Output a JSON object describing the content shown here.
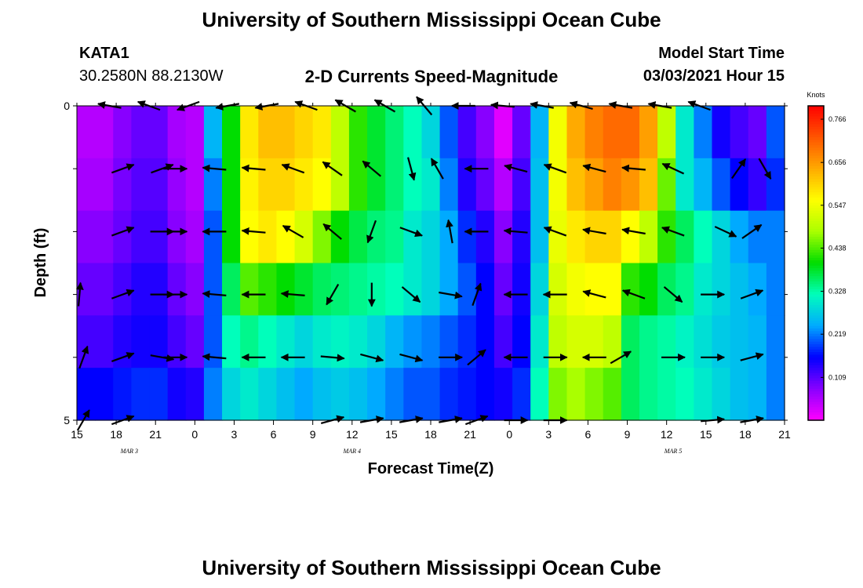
{
  "header": {
    "title": "University of Southern Mississippi Ocean Cube",
    "station": "KATA1",
    "coords": "30.2580N 88.2130W",
    "subtitle": "2-D Currents Speed-Magnitude",
    "model_start_label": "Model Start Time",
    "model_start_value": "03/03/2021 Hour 15"
  },
  "footer": {
    "title": "University of Southern Mississippi Ocean Cube"
  },
  "chart_data": {
    "type": "heatmap",
    "title": "2-D Currents Speed-Magnitude",
    "xlabel": "Forecast Time(Z)",
    "ylabel": "Depth (ft)",
    "x_start_hour": 15,
    "x_end_hour": 69,
    "x_step_hours": 3,
    "x_tick_labels": [
      "15",
      "18",
      "21",
      "0",
      "3",
      "6",
      "9",
      "12",
      "15",
      "18",
      "21",
      "0",
      "3",
      "6",
      "9",
      "12",
      "15",
      "18",
      "21"
    ],
    "day_labels": [
      {
        "text": "MAR 3",
        "hour": 19
      },
      {
        "text": "MAR 4",
        "hour": 36
      },
      {
        "text": "MAR 5",
        "hour": 60.5
      }
    ],
    "y_tick_labels": [
      "0",
      "5"
    ],
    "ylim": [
      0,
      5
    ],
    "depths": [
      0,
      1,
      2,
      3,
      4,
      5
    ],
    "colorbar": {
      "unit": "Knots",
      "ticks": [
        "0.766",
        "0.656",
        "0.547",
        "0.438",
        "0.328",
        "0.219",
        "0.109"
      ],
      "tick_values": [
        0.766,
        0.656,
        0.547,
        0.438,
        0.328,
        0.219,
        0.109
      ],
      "min": 0,
      "max": 0.8,
      "colors": [
        "#ff00ff",
        "#8800ff",
        "#0000ff",
        "#00aaff",
        "#00ffbb",
        "#00dd00",
        "#aaff00",
        "#ffff00",
        "#ffaa00",
        "#ff5500",
        "#ff0000"
      ]
    },
    "speed_rows": [
      [
        0.05,
        0.05,
        0.08,
        0.1,
        0.1,
        0.06,
        0.05,
        0.25,
        0.4,
        0.58,
        0.62,
        0.62,
        0.6,
        0.58,
        0.5,
        0.42,
        0.38,
        0.35,
        0.32,
        0.28,
        0.2,
        0.12,
        0.08,
        0.02,
        0.1,
        0.25,
        0.55,
        0.64,
        0.68,
        0.7,
        0.7,
        0.65,
        0.5,
        0.3,
        0.22,
        0.15,
        0.12,
        0.1,
        0.2
      ],
      [
        0.06,
        0.06,
        0.09,
        0.11,
        0.11,
        0.07,
        0.05,
        0.22,
        0.4,
        0.57,
        0.6,
        0.6,
        0.58,
        0.56,
        0.5,
        0.42,
        0.38,
        0.35,
        0.32,
        0.3,
        0.22,
        0.14,
        0.1,
        0.05,
        0.12,
        0.26,
        0.55,
        0.62,
        0.65,
        0.68,
        0.66,
        0.62,
        0.45,
        0.3,
        0.25,
        0.2,
        0.16,
        0.13,
        0.18
      ],
      [
        0.08,
        0.08,
        0.1,
        0.12,
        0.12,
        0.08,
        0.06,
        0.2,
        0.4,
        0.56,
        0.58,
        0.56,
        0.52,
        0.46,
        0.4,
        0.37,
        0.35,
        0.34,
        0.3,
        0.28,
        0.24,
        0.18,
        0.14,
        0.08,
        0.14,
        0.26,
        0.54,
        0.58,
        0.6,
        0.6,
        0.56,
        0.5,
        0.42,
        0.36,
        0.32,
        0.28,
        0.24,
        0.22,
        0.22
      ],
      [
        0.1,
        0.1,
        0.12,
        0.14,
        0.14,
        0.1,
        0.08,
        0.2,
        0.36,
        0.44,
        0.42,
        0.4,
        0.38,
        0.36,
        0.35,
        0.34,
        0.33,
        0.32,
        0.3,
        0.28,
        0.24,
        0.2,
        0.16,
        0.1,
        0.15,
        0.28,
        0.52,
        0.55,
        0.56,
        0.56,
        0.42,
        0.4,
        0.36,
        0.34,
        0.3,
        0.28,
        0.26,
        0.24,
        0.22
      ],
      [
        0.12,
        0.12,
        0.14,
        0.15,
        0.15,
        0.12,
        0.1,
        0.2,
        0.32,
        0.34,
        0.32,
        0.3,
        0.28,
        0.3,
        0.31,
        0.3,
        0.28,
        0.25,
        0.23,
        0.22,
        0.2,
        0.18,
        0.16,
        0.12,
        0.16,
        0.3,
        0.5,
        0.52,
        0.52,
        0.5,
        0.36,
        0.34,
        0.33,
        0.31,
        0.29,
        0.27,
        0.26,
        0.25,
        0.22
      ],
      [
        0.16,
        0.16,
        0.17,
        0.18,
        0.18,
        0.15,
        0.14,
        0.22,
        0.28,
        0.3,
        0.28,
        0.26,
        0.24,
        0.26,
        0.27,
        0.26,
        0.24,
        0.22,
        0.2,
        0.2,
        0.18,
        0.17,
        0.16,
        0.15,
        0.18,
        0.32,
        0.46,
        0.48,
        0.46,
        0.44,
        0.36,
        0.34,
        0.33,
        0.32,
        0.3,
        0.28,
        0.26,
        0.25,
        0.22
      ]
    ],
    "vectors": [
      {
        "hour": 17.5,
        "depth": 0,
        "angle": 190
      },
      {
        "hour": 20.5,
        "depth": 0,
        "angle": 200
      },
      {
        "hour": 23.5,
        "depth": 0,
        "angle": 160
      },
      {
        "hour": 26.5,
        "depth": 0,
        "angle": 170
      },
      {
        "hour": 29.5,
        "depth": 0,
        "angle": 170
      },
      {
        "hour": 32.5,
        "depth": 0,
        "angle": 200
      },
      {
        "hour": 35.5,
        "depth": 0,
        "angle": 210
      },
      {
        "hour": 38.5,
        "depth": 0,
        "angle": 210
      },
      {
        "hour": 41.5,
        "depth": 0,
        "angle": 230
      },
      {
        "hour": 44.5,
        "depth": 0,
        "angle": 180
      },
      {
        "hour": 47.5,
        "depth": 0,
        "angle": 185
      },
      {
        "hour": 50.5,
        "depth": 0,
        "angle": 190
      },
      {
        "hour": 53.5,
        "depth": 0,
        "angle": 195
      },
      {
        "hour": 56.5,
        "depth": 0,
        "angle": 190
      },
      {
        "hour": 59.5,
        "depth": 0,
        "angle": 190
      },
      {
        "hour": 62.5,
        "depth": 0,
        "angle": 200
      },
      {
        "hour": 18.5,
        "depth": 1,
        "angle": -20
      },
      {
        "hour": 21.5,
        "depth": 1,
        "angle": -20
      },
      {
        "hour": 22.5,
        "depth": 1,
        "angle": 0
      },
      {
        "hour": 25.5,
        "depth": 1,
        "angle": 185
      },
      {
        "hour": 28.5,
        "depth": 1,
        "angle": 185
      },
      {
        "hour": 31.5,
        "depth": 1,
        "angle": 200
      },
      {
        "hour": 34.5,
        "depth": 1,
        "angle": 215
      },
      {
        "hour": 37.5,
        "depth": 1,
        "angle": 220
      },
      {
        "hour": 40.5,
        "depth": 1,
        "angle": 75
      },
      {
        "hour": 42.5,
        "depth": 1,
        "angle": -120
      },
      {
        "hour": 45.5,
        "depth": 1,
        "angle": 180
      },
      {
        "hour": 48.5,
        "depth": 1,
        "angle": 195
      },
      {
        "hour": 51.5,
        "depth": 1,
        "angle": 200
      },
      {
        "hour": 54.5,
        "depth": 1,
        "angle": 195
      },
      {
        "hour": 57.5,
        "depth": 1,
        "angle": 185
      },
      {
        "hour": 60.5,
        "depth": 1,
        "angle": 205
      },
      {
        "hour": 65.5,
        "depth": 1,
        "angle": -55
      },
      {
        "hour": 67.5,
        "depth": 1,
        "angle": 60
      },
      {
        "hour": 18.5,
        "depth": 2,
        "angle": -20
      },
      {
        "hour": 21.5,
        "depth": 2,
        "angle": 0
      },
      {
        "hour": 22.5,
        "depth": 2,
        "angle": 0
      },
      {
        "hour": 25.5,
        "depth": 2,
        "angle": 180
      },
      {
        "hour": 28.5,
        "depth": 2,
        "angle": 185
      },
      {
        "hour": 31.5,
        "depth": 2,
        "angle": 210
      },
      {
        "hour": 34.5,
        "depth": 2,
        "angle": 220
      },
      {
        "hour": 37.5,
        "depth": 2,
        "angle": 110
      },
      {
        "hour": 40.5,
        "depth": 2,
        "angle": 20
      },
      {
        "hour": 43.5,
        "depth": 2,
        "angle": -100
      },
      {
        "hour": 45.5,
        "depth": 2,
        "angle": 180
      },
      {
        "hour": 48.5,
        "depth": 2,
        "angle": 185
      },
      {
        "hour": 51.5,
        "depth": 2,
        "angle": 200
      },
      {
        "hour": 54.5,
        "depth": 2,
        "angle": 190
      },
      {
        "hour": 57.5,
        "depth": 2,
        "angle": 190
      },
      {
        "hour": 60.5,
        "depth": 2,
        "angle": 200
      },
      {
        "hour": 64.5,
        "depth": 2,
        "angle": 25
      },
      {
        "hour": 66.5,
        "depth": 2,
        "angle": -35
      },
      {
        "hour": 15.2,
        "depth": 3,
        "angle": -85
      },
      {
        "hour": 18.5,
        "depth": 3,
        "angle": -20
      },
      {
        "hour": 21.5,
        "depth": 3,
        "angle": 0
      },
      {
        "hour": 22.5,
        "depth": 3,
        "angle": 0
      },
      {
        "hour": 25.5,
        "depth": 3,
        "angle": 185
      },
      {
        "hour": 28.5,
        "depth": 3,
        "angle": 180
      },
      {
        "hour": 31.5,
        "depth": 3,
        "angle": 185
      },
      {
        "hour": 34.5,
        "depth": 3,
        "angle": 120
      },
      {
        "hour": 37.5,
        "depth": 3,
        "angle": 90
      },
      {
        "hour": 40.5,
        "depth": 3,
        "angle": 40
      },
      {
        "hour": 43.5,
        "depth": 3,
        "angle": 10
      },
      {
        "hour": 45.5,
        "depth": 3,
        "angle": -70
      },
      {
        "hour": 48.5,
        "depth": 3,
        "angle": 180
      },
      {
        "hour": 51.5,
        "depth": 3,
        "angle": 180
      },
      {
        "hour": 54.5,
        "depth": 3,
        "angle": 195
      },
      {
        "hour": 57.5,
        "depth": 3,
        "angle": 200
      },
      {
        "hour": 60.5,
        "depth": 3,
        "angle": 40
      },
      {
        "hour": 63.5,
        "depth": 3,
        "angle": 0
      },
      {
        "hour": 66.5,
        "depth": 3,
        "angle": -20
      },
      {
        "hour": 15.5,
        "depth": 4,
        "angle": -70
      },
      {
        "hour": 18.5,
        "depth": 4,
        "angle": -20
      },
      {
        "hour": 21.5,
        "depth": 4,
        "angle": 10
      },
      {
        "hour": 22.5,
        "depth": 4,
        "angle": 0
      },
      {
        "hour": 25.5,
        "depth": 4,
        "angle": 185
      },
      {
        "hour": 28.5,
        "depth": 4,
        "angle": 180
      },
      {
        "hour": 31.5,
        "depth": 4,
        "angle": 180
      },
      {
        "hour": 34.5,
        "depth": 4,
        "angle": 5
      },
      {
        "hour": 37.5,
        "depth": 4,
        "angle": 15
      },
      {
        "hour": 40.5,
        "depth": 4,
        "angle": 15
      },
      {
        "hour": 43.5,
        "depth": 4,
        "angle": 0
      },
      {
        "hour": 45.5,
        "depth": 4,
        "angle": -40
      },
      {
        "hour": 48.5,
        "depth": 4,
        "angle": 180
      },
      {
        "hour": 51.5,
        "depth": 4,
        "angle": 0
      },
      {
        "hour": 54.5,
        "depth": 4,
        "angle": 180
      },
      {
        "hour": 56.5,
        "depth": 4,
        "angle": -30
      },
      {
        "hour": 60.5,
        "depth": 4,
        "angle": 0
      },
      {
        "hour": 63.5,
        "depth": 4,
        "angle": 0
      },
      {
        "hour": 66.5,
        "depth": 4,
        "angle": -15
      },
      {
        "hour": 15.5,
        "depth": 5,
        "angle": -60
      },
      {
        "hour": 18.5,
        "depth": 5,
        "angle": -20
      },
      {
        "hour": 34.5,
        "depth": 5,
        "angle": -15
      },
      {
        "hour": 37.5,
        "depth": 5,
        "angle": -10
      },
      {
        "hour": 40.5,
        "depth": 5,
        "angle": -10
      },
      {
        "hour": 43.5,
        "depth": 5,
        "angle": -10
      },
      {
        "hour": 45.5,
        "depth": 5,
        "angle": -20
      },
      {
        "hour": 48.5,
        "depth": 5,
        "angle": 0
      },
      {
        "hour": 51.5,
        "depth": 5,
        "angle": 0
      },
      {
        "hour": 63.5,
        "depth": 5,
        "angle": -5
      },
      {
        "hour": 66.5,
        "depth": 5,
        "angle": -10
      }
    ]
  }
}
